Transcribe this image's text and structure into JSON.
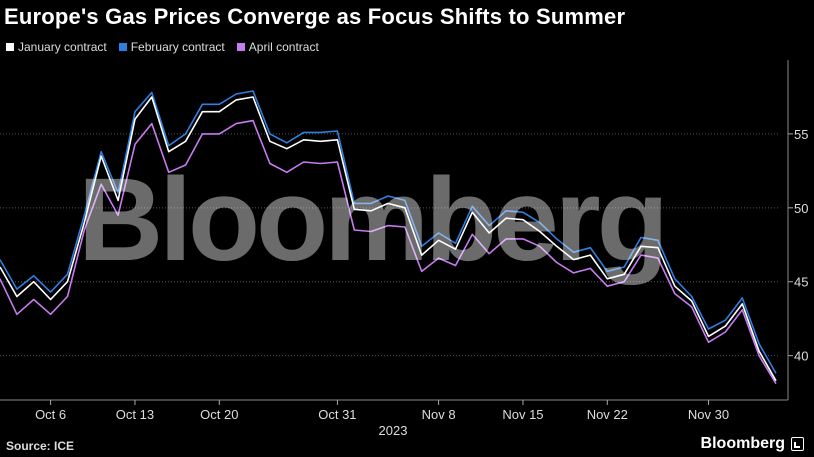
{
  "chart_data": {
    "type": "line",
    "title": "Europe's Gas Prices Converge as Focus Shifts to Summer",
    "xlabel": "2023",
    "ylabel": "",
    "ylim": [
      37,
      60
    ],
    "y_ticks": [
      40,
      45,
      50,
      55
    ],
    "x_ticks": [
      "Oct 6",
      "Oct 13",
      "Oct 20",
      "Oct 31",
      "Nov 8",
      "Nov 15",
      "Nov 22",
      "Nov 30"
    ],
    "x_tick_index": [
      3,
      8,
      13,
      20,
      26,
      31,
      36,
      42
    ],
    "x_count": 47,
    "series": [
      {
        "name": "January contract",
        "color": "#ffffff",
        "values": [
          46.0,
          44.0,
          45.0,
          43.8,
          45.0,
          49.0,
          53.5,
          50.5,
          56.0,
          57.5,
          53.8,
          54.5,
          56.5,
          56.5,
          57.3,
          57.5,
          54.5,
          54.0,
          54.6,
          54.5,
          54.6,
          49.9,
          49.8,
          50.3,
          50.0,
          46.8,
          47.8,
          47.2,
          49.7,
          48.3,
          49.3,
          49.2,
          48.4,
          47.4,
          46.5,
          46.8,
          45.2,
          45.5,
          47.4,
          47.3,
          44.7,
          43.7,
          41.3,
          42.0,
          43.5,
          40.3,
          38.3
        ]
      },
      {
        "name": "February contract",
        "color": "#2f7fe0",
        "values": [
          46.5,
          44.5,
          45.4,
          44.3,
          45.5,
          49.5,
          53.8,
          51.0,
          56.5,
          57.8,
          54.2,
          55.0,
          57.0,
          57.0,
          57.7,
          57.9,
          55.0,
          54.4,
          55.1,
          55.1,
          55.2,
          50.3,
          50.3,
          50.8,
          50.5,
          47.4,
          48.3,
          47.6,
          50.1,
          48.8,
          49.8,
          49.7,
          49.0,
          47.9,
          47.0,
          47.3,
          45.7,
          46.0,
          48.0,
          47.8,
          45.2,
          44.0,
          41.8,
          42.4,
          43.9,
          40.8,
          38.8
        ]
      },
      {
        "name": "April contract",
        "color": "#c87bf0",
        "values": [
          45.2,
          42.8,
          43.8,
          42.8,
          44.0,
          48.5,
          51.6,
          49.5,
          54.3,
          55.7,
          52.4,
          52.9,
          55.0,
          55.0,
          55.7,
          55.9,
          53.0,
          52.4,
          53.1,
          53.0,
          53.1,
          48.5,
          48.4,
          48.8,
          48.7,
          45.7,
          46.6,
          46.1,
          48.2,
          46.9,
          47.9,
          47.9,
          47.4,
          46.3,
          45.6,
          45.9,
          44.7,
          45.0,
          46.8,
          46.6,
          44.2,
          43.3,
          40.9,
          41.6,
          43.1,
          40.0,
          38.1
        ]
      }
    ],
    "source": "Source: ICE",
    "brand": "Bloomberg",
    "watermark": "Bloomberg"
  }
}
